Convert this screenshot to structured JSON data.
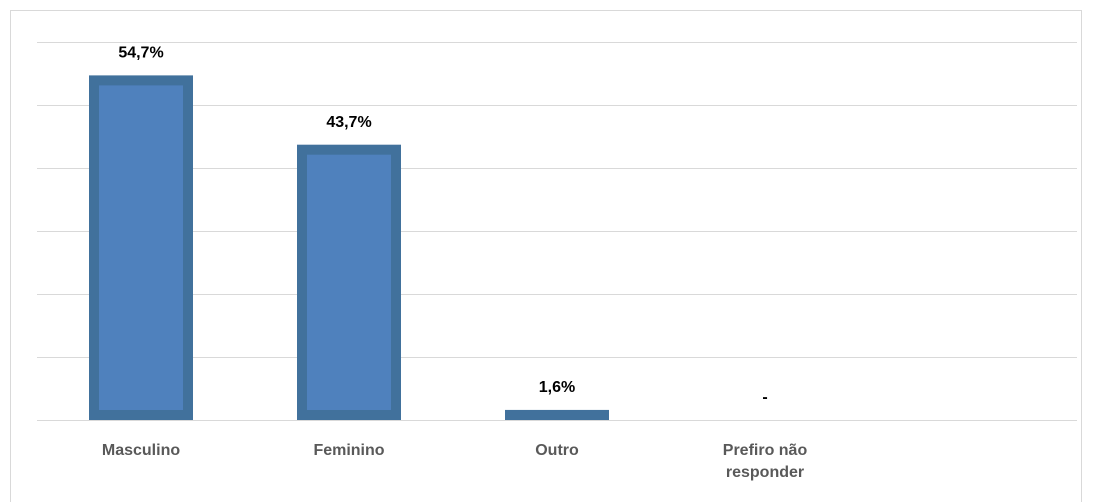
{
  "chart_data": {
    "type": "bar",
    "categories": [
      "Masculino",
      "Feminino",
      "Outro",
      "Prefiro não responder",
      null
    ],
    "values": [
      54.7,
      43.7,
      1.6,
      0,
      null
    ],
    "value_labels": [
      "54,7%",
      "43,7%",
      "1,6%",
      "-",
      null
    ],
    "color": "#4f81bd",
    "ylim": [
      0,
      60
    ],
    "yticks": [
      0,
      10,
      20,
      30,
      40,
      50,
      60
    ],
    "grid": true
  }
}
